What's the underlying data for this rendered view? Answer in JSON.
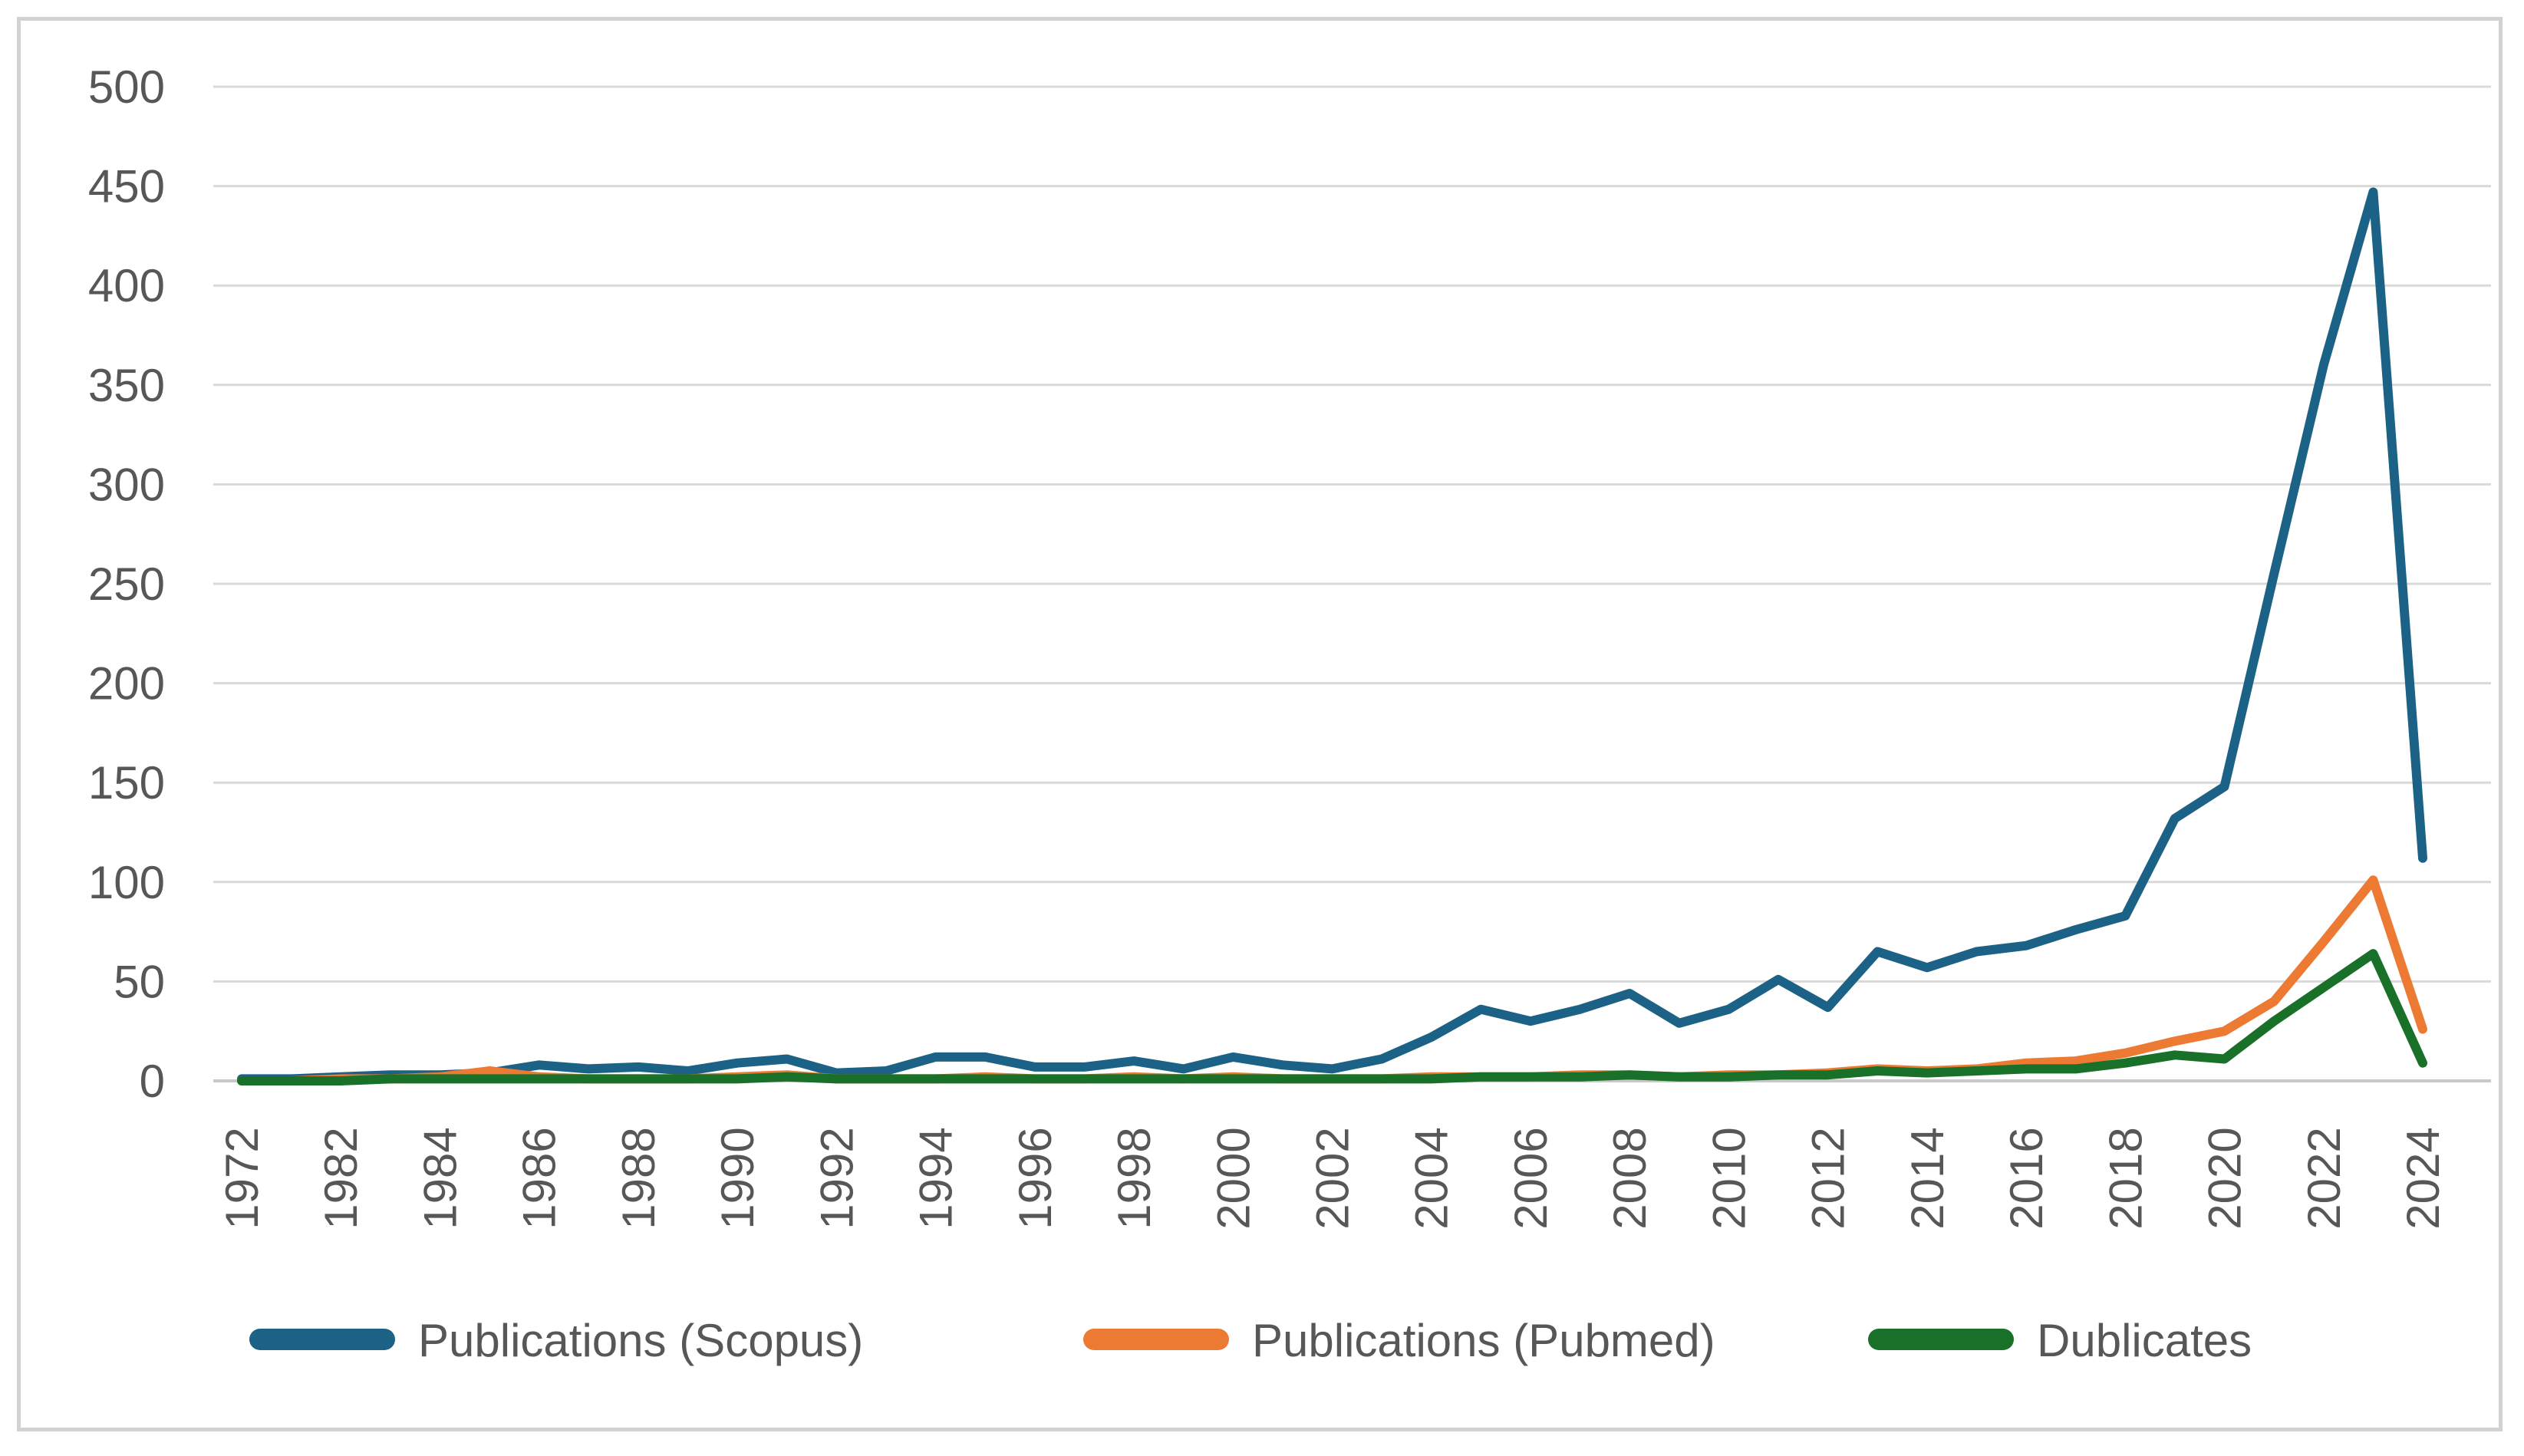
{
  "window": {
    "background": "#ffffff",
    "frame_border_color": "#d2d2d2"
  },
  "chart_data": {
    "type": "line",
    "title": "",
    "xlabel": "",
    "ylabel": "",
    "ylim": [
      0,
      500
    ],
    "grid": true,
    "legend_position": "bottom",
    "gridline_color": "#d9d9d9",
    "axis_line_color": "#c9c9c9",
    "label_color": "#575757",
    "y_ticks": [
      0,
      50,
      100,
      150,
      200,
      250,
      300,
      350,
      400,
      450,
      500
    ],
    "x_tick_labels": [
      "1972",
      "1982",
      "1984",
      "1986",
      "1988",
      "1990",
      "1992",
      "1994",
      "1996",
      "1998",
      "2000",
      "2002",
      "2004",
      "2006",
      "2008",
      "2010",
      "2012",
      "2014",
      "2016",
      "2018",
      "2020",
      "2022",
      "2024"
    ],
    "categories": [
      "1972",
      "1981",
      "1982",
      "1983",
      "1984",
      "1985",
      "1986",
      "1987",
      "1988",
      "1989",
      "1990",
      "1991",
      "1992",
      "1993",
      "1994",
      "1995",
      "1996",
      "1997",
      "1998",
      "1999",
      "2000",
      "2001",
      "2002",
      "2003",
      "2004",
      "2005",
      "2006",
      "2007",
      "2008",
      "2009",
      "2010",
      "2011",
      "2012",
      "2013",
      "2014",
      "2015",
      "2016",
      "2017",
      "2018",
      "2019",
      "2020",
      "2021",
      "2022",
      "2023",
      "2024"
    ],
    "series": [
      {
        "name": "Publications (Scopus)",
        "color": "#1c6286",
        "values": [
          1,
          1,
          2,
          3,
          3,
          4,
          8,
          6,
          7,
          5,
          9,
          11,
          4,
          5,
          12,
          12,
          7,
          7,
          10,
          6,
          12,
          8,
          6,
          11,
          22,
          36,
          30,
          36,
          44,
          29,
          36,
          51,
          37,
          65,
          57,
          65,
          68,
          76,
          83,
          132,
          148,
          255,
          360,
          447,
          112
        ]
      },
      {
        "name": "Publications (Pubmed)",
        "color": "#ec7a33",
        "values": [
          0,
          0,
          1,
          1,
          2,
          5,
          2,
          1,
          1,
          1,
          2,
          3,
          1,
          1,
          1,
          2,
          1,
          1,
          2,
          1,
          2,
          1,
          1,
          1,
          2,
          2,
          2,
          3,
          3,
          2,
          3,
          3,
          4,
          6,
          5,
          6,
          9,
          10,
          14,
          20,
          25,
          40,
          70,
          101,
          26
        ]
      },
      {
        "name": "Dublicates",
        "color": "#187029",
        "values": [
          0,
          0,
          0,
          1,
          1,
          1,
          1,
          1,
          1,
          1,
          1,
          2,
          1,
          1,
          1,
          1,
          1,
          1,
          1,
          1,
          1,
          1,
          1,
          1,
          1,
          2,
          2,
          2,
          3,
          2,
          2,
          3,
          3,
          5,
          4,
          5,
          6,
          6,
          9,
          13,
          11,
          30,
          47,
          64,
          9
        ]
      }
    ]
  }
}
